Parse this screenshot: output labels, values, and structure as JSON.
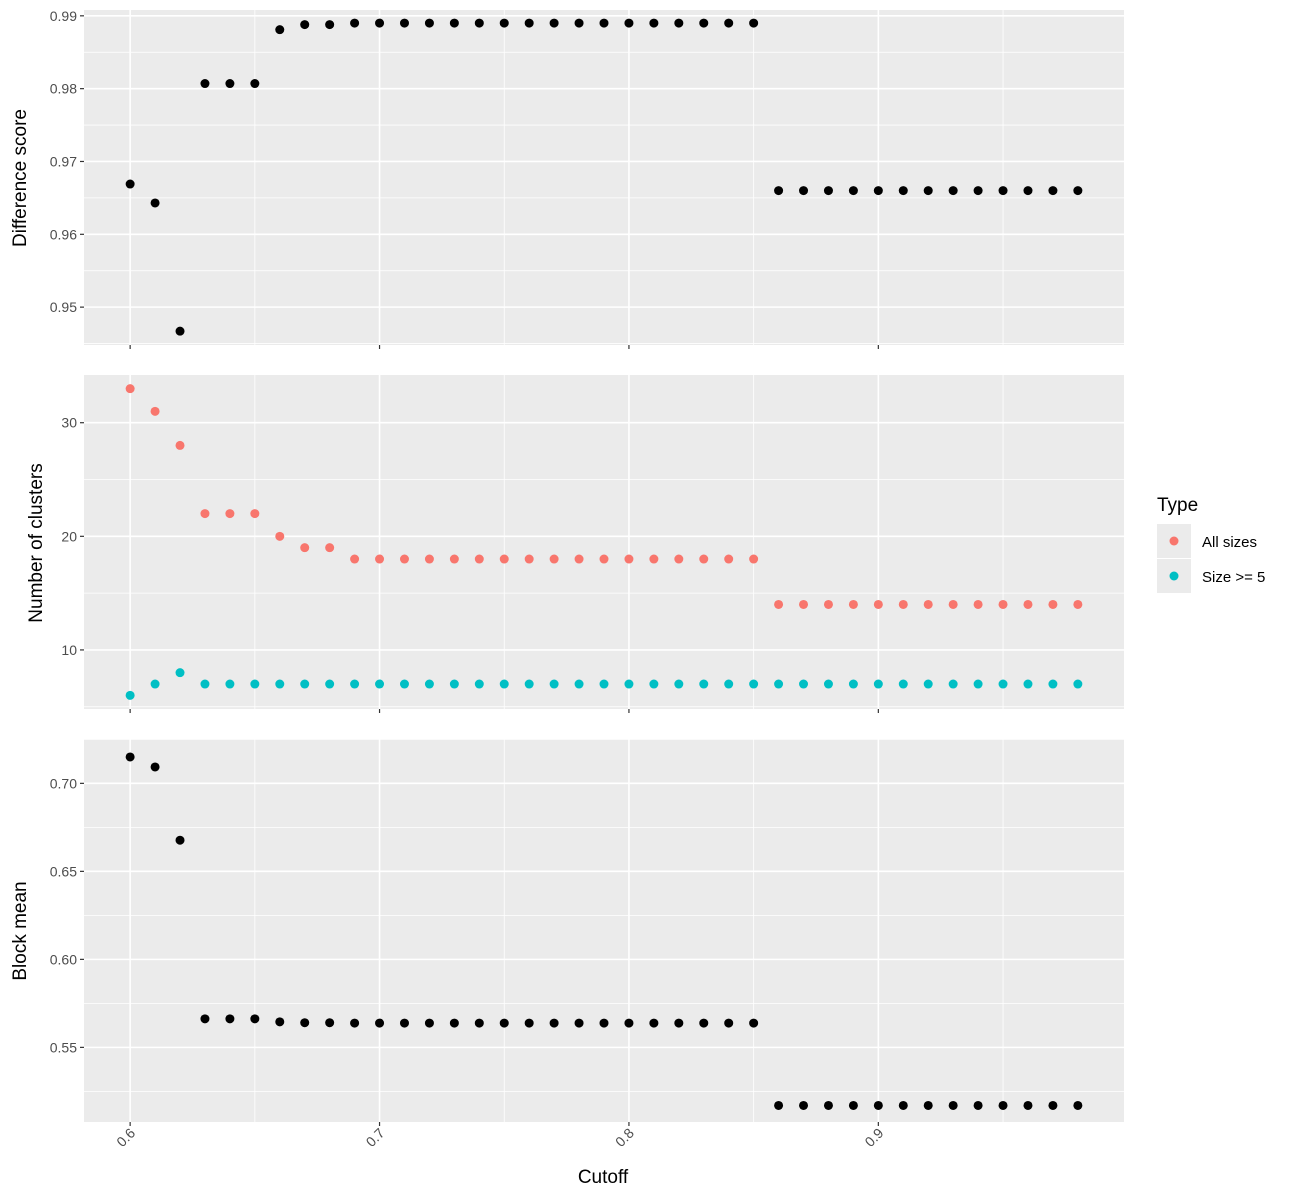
{
  "chart_data": {
    "type": "scatter",
    "x_label": "Cutoff",
    "x_range": [
      0.5815,
      0.9985
    ],
    "x_ticks": [
      0.6,
      0.7,
      0.8,
      0.9
    ],
    "x_tick_labels": [
      "0.6",
      "0.7",
      "0.8",
      "0.9"
    ],
    "x": [
      0.6,
      0.61,
      0.62,
      0.63,
      0.64,
      0.65,
      0.66,
      0.67,
      0.68,
      0.69,
      0.7,
      0.71,
      0.72,
      0.73,
      0.74,
      0.75,
      0.76,
      0.77,
      0.78,
      0.79,
      0.8,
      0.81,
      0.82,
      0.83,
      0.84,
      0.85,
      0.86,
      0.87,
      0.88,
      0.89,
      0.9,
      0.91,
      0.92,
      0.93,
      0.94,
      0.95,
      0.96,
      0.97,
      0.98
    ],
    "grid": true,
    "legend": {
      "title": "Type",
      "placement": "right",
      "entries": [
        {
          "label": "All sizes",
          "color": "#F8766D"
        },
        {
          "label": "Size >= 5",
          "color": "#00BFC4"
        }
      ]
    },
    "panels": [
      {
        "y_label": "Difference score",
        "y_range": [
          0.9448,
          0.9908
        ],
        "y_ticks": [
          0.95,
          0.96,
          0.97,
          0.98,
          0.99
        ],
        "y_tick_labels": [
          "0.95",
          "0.96",
          "0.97",
          "0.98",
          "0.99"
        ],
        "series": [
          {
            "color": "#000000",
            "values": [
              0.9669,
              0.9643,
              0.9467,
              0.9807,
              0.9807,
              0.9807,
              0.9881,
              0.9888,
              0.9888,
              0.989,
              0.989,
              0.989,
              0.989,
              0.989,
              0.989,
              0.989,
              0.989,
              0.989,
              0.989,
              0.989,
              0.989,
              0.989,
              0.989,
              0.989,
              0.989,
              0.989,
              0.966,
              0.966,
              0.966,
              0.966,
              0.966,
              0.966,
              0.966,
              0.966,
              0.966,
              0.966,
              0.966,
              0.966,
              0.966
            ]
          }
        ]
      },
      {
        "y_label": "Number of clusters",
        "y_range": [
          4.8,
          34.2
        ],
        "y_ticks": [
          10,
          20,
          30
        ],
        "y_tick_labels": [
          "10",
          "20",
          "30"
        ],
        "series": [
          {
            "name": "All sizes",
            "color": "#F8766D",
            "values": [
              33,
              31,
              28,
              22,
              22,
              22,
              20,
              19,
              19,
              18,
              18,
              18,
              18,
              18,
              18,
              18,
              18,
              18,
              18,
              18,
              18,
              18,
              18,
              18,
              18,
              18,
              14,
              14,
              14,
              14,
              14,
              14,
              14,
              14,
              14,
              14,
              14,
              14,
              14
            ]
          },
          {
            "name": "Size >= 5",
            "color": "#00BFC4",
            "values": [
              6,
              7,
              8,
              7,
              7,
              7,
              7,
              7,
              7,
              7,
              7,
              7,
              7,
              7,
              7,
              7,
              7,
              7,
              7,
              7,
              7,
              7,
              7,
              7,
              7,
              7,
              7,
              7,
              7,
              7,
              7,
              7,
              7,
              7,
              7,
              7,
              7,
              7,
              7
            ]
          }
        ]
      },
      {
        "y_label": "Block mean",
        "y_range": [
          0.5076,
          0.7252
        ],
        "y_ticks": [
          0.55,
          0.6,
          0.65,
          0.7
        ],
        "y_tick_labels": [
          "0.55",
          "0.60",
          "0.65",
          "0.70"
        ],
        "series": [
          {
            "color": "#000000",
            "values": [
              0.715,
              0.7093,
              0.6677,
              0.5662,
              0.5662,
              0.5662,
              0.5645,
              0.564,
              0.564,
              0.5638,
              0.5638,
              0.5638,
              0.5638,
              0.5638,
              0.5638,
              0.5638,
              0.5638,
              0.5638,
              0.5638,
              0.5638,
              0.5638,
              0.5638,
              0.5638,
              0.5638,
              0.5638,
              0.5638,
              0.517,
              0.517,
              0.517,
              0.517,
              0.517,
              0.517,
              0.517,
              0.517,
              0.517,
              0.517,
              0.517,
              0.517,
              0.517
            ]
          }
        ]
      }
    ]
  }
}
